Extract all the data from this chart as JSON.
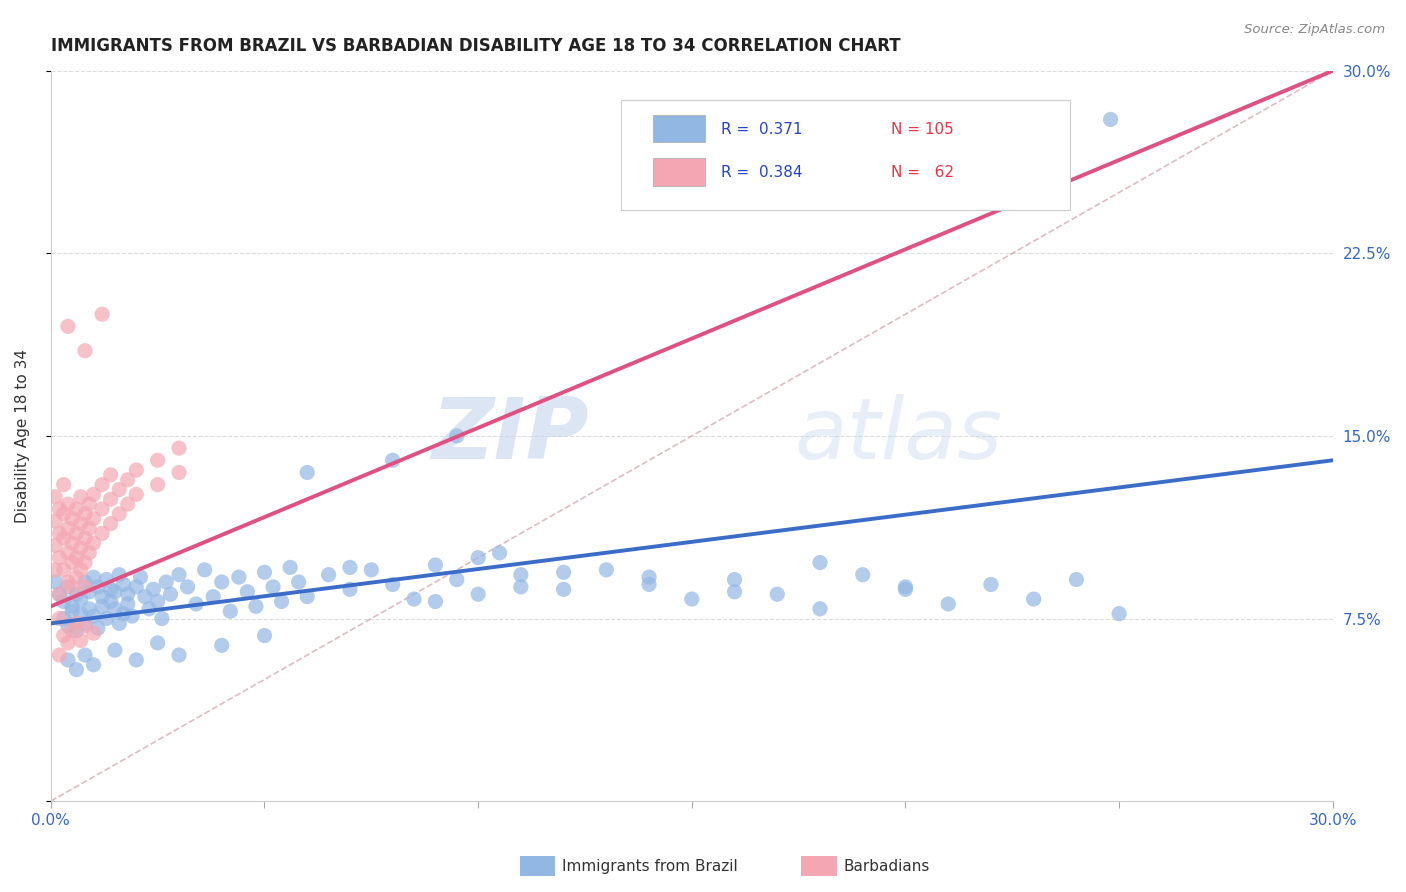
{
  "title": "IMMIGRANTS FROM BRAZIL VS BARBADIAN DISABILITY AGE 18 TO 34 CORRELATION CHART",
  "source": "Source: ZipAtlas.com",
  "ylabel": "Disability Age 18 to 34",
  "xlim": [
    0.0,
    0.3
  ],
  "ylim": [
    0.0,
    0.3
  ],
  "xticks": [
    0.0,
    0.05,
    0.1,
    0.15,
    0.2,
    0.25,
    0.3
  ],
  "yticks": [
    0.0,
    0.075,
    0.15,
    0.225,
    0.3
  ],
  "yticklabels_right": [
    "",
    "7.5%",
    "15.0%",
    "22.5%",
    "30.0%"
  ],
  "color_brazil": "#93B7E3",
  "color_barbadian": "#F4A7B3",
  "color_brazil_line": "#3A6CC8",
  "color_barbadian_line": "#E05080",
  "color_diagonal": "#D0A0A8",
  "watermark_zip": "ZIP",
  "watermark_atlas": "atlas",
  "brazil_scatter": [
    [
      0.001,
      0.09
    ],
    [
      0.002,
      0.085
    ],
    [
      0.003,
      0.082
    ],
    [
      0.003,
      0.075
    ],
    [
      0.004,
      0.088
    ],
    [
      0.004,
      0.072
    ],
    [
      0.005,
      0.08
    ],
    [
      0.005,
      0.078
    ],
    [
      0.006,
      0.085
    ],
    [
      0.006,
      0.07
    ],
    [
      0.007,
      0.083
    ],
    [
      0.007,
      0.077
    ],
    [
      0.008,
      0.09
    ],
    [
      0.008,
      0.073
    ],
    [
      0.009,
      0.086
    ],
    [
      0.009,
      0.079
    ],
    [
      0.01,
      0.092
    ],
    [
      0.01,
      0.076
    ],
    [
      0.011,
      0.088
    ],
    [
      0.011,
      0.071
    ],
    [
      0.012,
      0.084
    ],
    [
      0.012,
      0.08
    ],
    [
      0.013,
      0.091
    ],
    [
      0.013,
      0.075
    ],
    [
      0.014,
      0.087
    ],
    [
      0.014,
      0.082
    ],
    [
      0.015,
      0.079
    ],
    [
      0.015,
      0.086
    ],
    [
      0.016,
      0.093
    ],
    [
      0.016,
      0.073
    ],
    [
      0.017,
      0.089
    ],
    [
      0.017,
      0.077
    ],
    [
      0.018,
      0.085
    ],
    [
      0.018,
      0.081
    ],
    [
      0.019,
      0.076
    ],
    [
      0.02,
      0.088
    ],
    [
      0.021,
      0.092
    ],
    [
      0.022,
      0.084
    ],
    [
      0.023,
      0.079
    ],
    [
      0.024,
      0.087
    ],
    [
      0.025,
      0.082
    ],
    [
      0.026,
      0.075
    ],
    [
      0.027,
      0.09
    ],
    [
      0.028,
      0.085
    ],
    [
      0.03,
      0.093
    ],
    [
      0.032,
      0.088
    ],
    [
      0.034,
      0.081
    ],
    [
      0.036,
      0.095
    ],
    [
      0.038,
      0.084
    ],
    [
      0.04,
      0.09
    ],
    [
      0.042,
      0.078
    ],
    [
      0.044,
      0.092
    ],
    [
      0.046,
      0.086
    ],
    [
      0.048,
      0.08
    ],
    [
      0.05,
      0.094
    ],
    [
      0.052,
      0.088
    ],
    [
      0.054,
      0.082
    ],
    [
      0.056,
      0.096
    ],
    [
      0.058,
      0.09
    ],
    [
      0.06,
      0.084
    ],
    [
      0.065,
      0.093
    ],
    [
      0.07,
      0.087
    ],
    [
      0.075,
      0.095
    ],
    [
      0.08,
      0.089
    ],
    [
      0.085,
      0.083
    ],
    [
      0.09,
      0.097
    ],
    [
      0.095,
      0.091
    ],
    [
      0.1,
      0.085
    ],
    [
      0.11,
      0.093
    ],
    [
      0.12,
      0.087
    ],
    [
      0.13,
      0.095
    ],
    [
      0.14,
      0.089
    ],
    [
      0.15,
      0.083
    ],
    [
      0.16,
      0.091
    ],
    [
      0.17,
      0.085
    ],
    [
      0.18,
      0.079
    ],
    [
      0.19,
      0.093
    ],
    [
      0.2,
      0.087
    ],
    [
      0.21,
      0.081
    ],
    [
      0.22,
      0.089
    ],
    [
      0.23,
      0.083
    ],
    [
      0.24,
      0.091
    ],
    [
      0.25,
      0.077
    ],
    [
      0.06,
      0.135
    ],
    [
      0.08,
      0.14
    ],
    [
      0.095,
      0.15
    ],
    [
      0.1,
      0.1
    ],
    [
      0.105,
      0.102
    ],
    [
      0.248,
      0.28
    ],
    [
      0.18,
      0.098
    ],
    [
      0.2,
      0.088
    ],
    [
      0.14,
      0.092
    ],
    [
      0.16,
      0.086
    ],
    [
      0.12,
      0.094
    ],
    [
      0.11,
      0.088
    ],
    [
      0.09,
      0.082
    ],
    [
      0.07,
      0.096
    ],
    [
      0.05,
      0.068
    ],
    [
      0.04,
      0.064
    ],
    [
      0.03,
      0.06
    ],
    [
      0.025,
      0.065
    ],
    [
      0.02,
      0.058
    ],
    [
      0.015,
      0.062
    ],
    [
      0.01,
      0.056
    ],
    [
      0.008,
      0.06
    ],
    [
      0.006,
      0.054
    ],
    [
      0.004,
      0.058
    ]
  ],
  "barbadian_scatter": [
    [
      0.001,
      0.095
    ],
    [
      0.001,
      0.105
    ],
    [
      0.001,
      0.115
    ],
    [
      0.001,
      0.125
    ],
    [
      0.002,
      0.1
    ],
    [
      0.002,
      0.11
    ],
    [
      0.002,
      0.12
    ],
    [
      0.002,
      0.085
    ],
    [
      0.003,
      0.108
    ],
    [
      0.003,
      0.118
    ],
    [
      0.003,
      0.095
    ],
    [
      0.003,
      0.13
    ],
    [
      0.004,
      0.112
    ],
    [
      0.004,
      0.102
    ],
    [
      0.004,
      0.122
    ],
    [
      0.004,
      0.09
    ],
    [
      0.005,
      0.106
    ],
    [
      0.005,
      0.116
    ],
    [
      0.005,
      0.098
    ],
    [
      0.005,
      0.088
    ],
    [
      0.006,
      0.11
    ],
    [
      0.006,
      0.12
    ],
    [
      0.006,
      0.1
    ],
    [
      0.006,
      0.092
    ],
    [
      0.007,
      0.114
    ],
    [
      0.007,
      0.104
    ],
    [
      0.007,
      0.125
    ],
    [
      0.007,
      0.095
    ],
    [
      0.008,
      0.108
    ],
    [
      0.008,
      0.098
    ],
    [
      0.008,
      0.118
    ],
    [
      0.008,
      0.088
    ],
    [
      0.009,
      0.112
    ],
    [
      0.009,
      0.102
    ],
    [
      0.009,
      0.122
    ],
    [
      0.01,
      0.116
    ],
    [
      0.01,
      0.106
    ],
    [
      0.01,
      0.126
    ],
    [
      0.012,
      0.12
    ],
    [
      0.012,
      0.11
    ],
    [
      0.012,
      0.13
    ],
    [
      0.014,
      0.124
    ],
    [
      0.014,
      0.114
    ],
    [
      0.014,
      0.134
    ],
    [
      0.016,
      0.128
    ],
    [
      0.016,
      0.118
    ],
    [
      0.018,
      0.132
    ],
    [
      0.018,
      0.122
    ],
    [
      0.02,
      0.136
    ],
    [
      0.02,
      0.126
    ],
    [
      0.025,
      0.14
    ],
    [
      0.025,
      0.13
    ],
    [
      0.03,
      0.145
    ],
    [
      0.03,
      0.135
    ],
    [
      0.002,
      0.075
    ],
    [
      0.003,
      0.068
    ],
    [
      0.004,
      0.065
    ],
    [
      0.005,
      0.07
    ],
    [
      0.006,
      0.073
    ],
    [
      0.007,
      0.066
    ],
    [
      0.008,
      0.072
    ],
    [
      0.01,
      0.069
    ],
    [
      0.004,
      0.195
    ],
    [
      0.008,
      0.185
    ],
    [
      0.012,
      0.2
    ],
    [
      0.002,
      0.06
    ]
  ],
  "brazil_line_x": [
    0.0,
    0.3
  ],
  "brazil_line_y": [
    0.073,
    0.14
  ],
  "barbadian_line_x": [
    0.0,
    0.3
  ],
  "barbadian_line_y": [
    0.08,
    0.3
  ]
}
